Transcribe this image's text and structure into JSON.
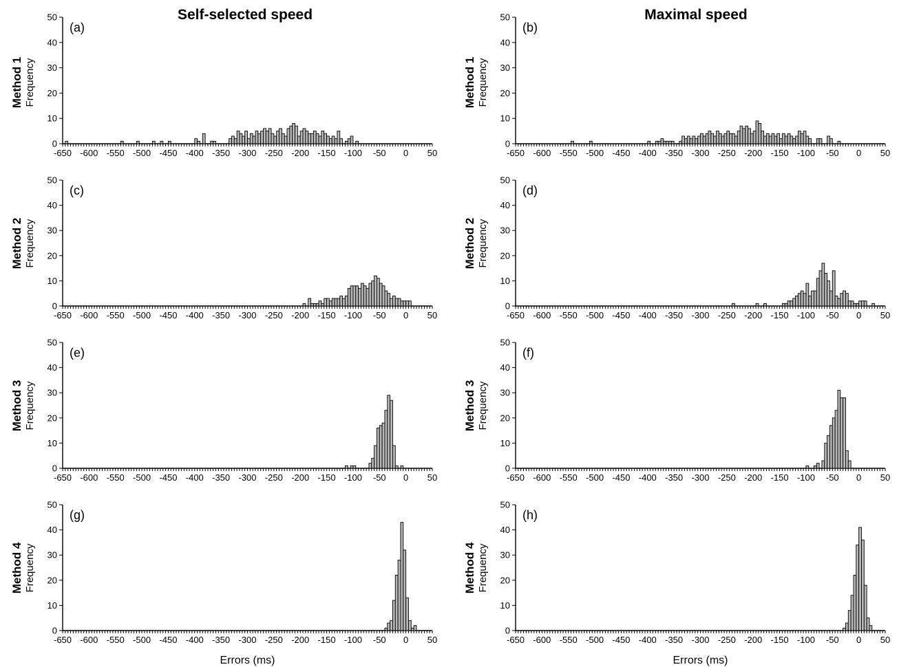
{
  "figure": {
    "columns": [
      {
        "title": "Self-selected speed"
      },
      {
        "title": "Maximal speed"
      }
    ],
    "rows": [
      {
        "method": "Method 1",
        "ylabel": "Frequency"
      },
      {
        "method": "Method 2",
        "ylabel": "Frequency"
      },
      {
        "method": "Method 3",
        "ylabel": "Frequency"
      },
      {
        "method": "Method 4",
        "ylabel": "Frequency"
      }
    ],
    "xlabel": "Errors (ms)",
    "bar_fill_color": "#b8b8b8"
  },
  "chart_data": [
    {
      "type": "bar",
      "label": "(a)",
      "column": "Self-selected speed",
      "row": "Method 1",
      "xlabel": "",
      "ylabel": "Frequency",
      "xlim": [
        -650,
        50
      ],
      "ylim": [
        0,
        50
      ],
      "xticks": [
        -650,
        -600,
        -550,
        -500,
        -450,
        -400,
        -350,
        -300,
        -250,
        -200,
        -150,
        -100,
        -50,
        0,
        50
      ],
      "yticks": [
        0,
        10,
        20,
        30,
        40,
        50
      ],
      "bin_width": 5,
      "bins": [
        [
          -645,
          1
        ],
        [
          -540,
          1
        ],
        [
          -510,
          1
        ],
        [
          -480,
          1
        ],
        [
          -465,
          1
        ],
        [
          -450,
          1
        ],
        [
          -400,
          2
        ],
        [
          -395,
          1
        ],
        [
          -385,
          4
        ],
        [
          -370,
          1
        ],
        [
          -365,
          1
        ],
        [
          -335,
          2
        ],
        [
          -330,
          3
        ],
        [
          -325,
          2
        ],
        [
          -320,
          5
        ],
        [
          -315,
          4
        ],
        [
          -310,
          3
        ],
        [
          -305,
          5
        ],
        [
          -300,
          2
        ],
        [
          -295,
          4
        ],
        [
          -290,
          3
        ],
        [
          -285,
          5
        ],
        [
          -280,
          4
        ],
        [
          -275,
          5
        ],
        [
          -270,
          6
        ],
        [
          -265,
          5
        ],
        [
          -260,
          6
        ],
        [
          -255,
          4
        ],
        [
          -250,
          3
        ],
        [
          -245,
          5
        ],
        [
          -240,
          6
        ],
        [
          -235,
          4
        ],
        [
          -230,
          3
        ],
        [
          -225,
          6
        ],
        [
          -220,
          7
        ],
        [
          -215,
          8
        ],
        [
          -210,
          7
        ],
        [
          -205,
          3
        ],
        [
          -200,
          5
        ],
        [
          -195,
          6
        ],
        [
          -190,
          5
        ],
        [
          -185,
          4
        ],
        [
          -180,
          4
        ],
        [
          -175,
          5
        ],
        [
          -170,
          4
        ],
        [
          -165,
          3
        ],
        [
          -160,
          5
        ],
        [
          -155,
          4
        ],
        [
          -150,
          3
        ],
        [
          -145,
          2
        ],
        [
          -140,
          3
        ],
        [
          -135,
          2
        ],
        [
          -130,
          5
        ],
        [
          -125,
          2
        ],
        [
          -115,
          1
        ],
        [
          -110,
          2
        ],
        [
          -105,
          3
        ],
        [
          -95,
          1
        ]
      ]
    },
    {
      "type": "bar",
      "label": "(b)",
      "column": "Maximal speed",
      "row": "Method 1",
      "xlabel": "",
      "ylabel": "Frequency",
      "xlim": [
        -650,
        50
      ],
      "ylim": [
        0,
        50
      ],
      "xticks": [
        -650,
        -600,
        -550,
        -500,
        -450,
        -400,
        -350,
        -300,
        -250,
        -200,
        -150,
        -100,
        -50,
        0,
        50
      ],
      "yticks": [
        0,
        10,
        20,
        30,
        40,
        50
      ],
      "bin_width": 5,
      "bins": [
        [
          -545,
          1
        ],
        [
          -510,
          1
        ],
        [
          -400,
          1
        ],
        [
          -385,
          1
        ],
        [
          -380,
          1
        ],
        [
          -375,
          2
        ],
        [
          -370,
          1
        ],
        [
          -365,
          1
        ],
        [
          -360,
          1
        ],
        [
          -355,
          1
        ],
        [
          -340,
          1
        ],
        [
          -335,
          3
        ],
        [
          -330,
          2
        ],
        [
          -325,
          3
        ],
        [
          -320,
          2
        ],
        [
          -315,
          3
        ],
        [
          -310,
          2
        ],
        [
          -305,
          3
        ],
        [
          -300,
          4
        ],
        [
          -295,
          3
        ],
        [
          -290,
          4
        ],
        [
          -285,
          5
        ],
        [
          -280,
          4
        ],
        [
          -275,
          3
        ],
        [
          -270,
          5
        ],
        [
          -265,
          4
        ],
        [
          -260,
          3
        ],
        [
          -255,
          4
        ],
        [
          -250,
          5
        ],
        [
          -245,
          4
        ],
        [
          -240,
          4
        ],
        [
          -235,
          3
        ],
        [
          -230,
          5
        ],
        [
          -225,
          7
        ],
        [
          -220,
          6
        ],
        [
          -215,
          7
        ],
        [
          -210,
          6
        ],
        [
          -205,
          4
        ],
        [
          -200,
          5
        ],
        [
          -195,
          9
        ],
        [
          -190,
          8
        ],
        [
          -185,
          5
        ],
        [
          -180,
          3
        ],
        [
          -175,
          4
        ],
        [
          -170,
          3
        ],
        [
          -165,
          4
        ],
        [
          -160,
          3
        ],
        [
          -155,
          4
        ],
        [
          -150,
          2
        ],
        [
          -145,
          4
        ],
        [
          -140,
          3
        ],
        [
          -135,
          4
        ],
        [
          -130,
          3
        ],
        [
          -125,
          2
        ],
        [
          -120,
          3
        ],
        [
          -115,
          5
        ],
        [
          -110,
          4
        ],
        [
          -105,
          5
        ],
        [
          -100,
          3
        ],
        [
          -95,
          2
        ],
        [
          -80,
          2
        ],
        [
          -75,
          2
        ],
        [
          -60,
          3
        ],
        [
          -55,
          2
        ],
        [
          -40,
          1
        ]
      ]
    },
    {
      "type": "bar",
      "label": "(c)",
      "column": "Self-selected speed",
      "row": "Method 2",
      "xlabel": "",
      "ylabel": "Frequency",
      "xlim": [
        -650,
        50
      ],
      "ylim": [
        0,
        50
      ],
      "xticks": [
        -650,
        -600,
        -550,
        -500,
        -450,
        -400,
        -350,
        -300,
        -250,
        -200,
        -150,
        -100,
        -50,
        0,
        50
      ],
      "yticks": [
        0,
        10,
        20,
        30,
        40,
        50
      ],
      "bin_width": 5,
      "bins": [
        [
          -195,
          1
        ],
        [
          -185,
          3
        ],
        [
          -180,
          1
        ],
        [
          -175,
          1
        ],
        [
          -170,
          1
        ],
        [
          -165,
          2
        ],
        [
          -160,
          1
        ],
        [
          -155,
          3
        ],
        [
          -150,
          3
        ],
        [
          -145,
          2
        ],
        [
          -140,
          3
        ],
        [
          -135,
          3
        ],
        [
          -130,
          3
        ],
        [
          -125,
          4
        ],
        [
          -120,
          3
        ],
        [
          -115,
          4
        ],
        [
          -110,
          7
        ],
        [
          -105,
          8
        ],
        [
          -100,
          8
        ],
        [
          -95,
          8
        ],
        [
          -90,
          7
        ],
        [
          -85,
          9
        ],
        [
          -80,
          8
        ],
        [
          -75,
          7
        ],
        [
          -70,
          9
        ],
        [
          -65,
          10
        ],
        [
          -60,
          12
        ],
        [
          -55,
          11
        ],
        [
          -50,
          9
        ],
        [
          -45,
          8
        ],
        [
          -40,
          6
        ],
        [
          -35,
          5
        ],
        [
          -30,
          3
        ],
        [
          -25,
          4
        ],
        [
          -20,
          3
        ],
        [
          -15,
          3
        ],
        [
          -10,
          2
        ],
        [
          -5,
          2
        ],
        [
          0,
          2
        ],
        [
          5,
          2
        ]
      ]
    },
    {
      "type": "bar",
      "label": "(d)",
      "column": "Maximal speed",
      "row": "Method 2",
      "xlabel": "",
      "ylabel": "Frequency",
      "xlim": [
        -650,
        50
      ],
      "ylim": [
        0,
        50
      ],
      "xticks": [
        -650,
        -600,
        -550,
        -500,
        -450,
        -400,
        -350,
        -300,
        -250,
        -200,
        -150,
        -100,
        -50,
        0,
        50
      ],
      "yticks": [
        0,
        10,
        20,
        30,
        40,
        50
      ],
      "bin_width": 5,
      "bins": [
        [
          -240,
          1
        ],
        [
          -195,
          1
        ],
        [
          -180,
          1
        ],
        [
          -145,
          1
        ],
        [
          -140,
          1
        ],
        [
          -135,
          2
        ],
        [
          -130,
          2
        ],
        [
          -125,
          3
        ],
        [
          -120,
          4
        ],
        [
          -115,
          5
        ],
        [
          -110,
          6
        ],
        [
          -105,
          5
        ],
        [
          -100,
          9
        ],
        [
          -95,
          4
        ],
        [
          -90,
          6
        ],
        [
          -85,
          6
        ],
        [
          -80,
          11
        ],
        [
          -75,
          14
        ],
        [
          -70,
          17
        ],
        [
          -65,
          13
        ],
        [
          -60,
          10
        ],
        [
          -55,
          6
        ],
        [
          -50,
          14
        ],
        [
          -45,
          4
        ],
        [
          -40,
          3
        ],
        [
          -35,
          5
        ],
        [
          -30,
          6
        ],
        [
          -25,
          5
        ],
        [
          -20,
          2
        ],
        [
          -15,
          2
        ],
        [
          -10,
          1
        ],
        [
          -5,
          1
        ],
        [
          0,
          2
        ],
        [
          5,
          2
        ],
        [
          10,
          2
        ],
        [
          25,
          1
        ]
      ]
    },
    {
      "type": "bar",
      "label": "(e)",
      "column": "Self-selected speed",
      "row": "Method 3",
      "xlabel": "",
      "ylabel": "Frequency",
      "xlim": [
        -650,
        50
      ],
      "ylim": [
        0,
        50
      ],
      "xticks": [
        -650,
        -600,
        -550,
        -500,
        -450,
        -400,
        -350,
        -300,
        -250,
        -200,
        -150,
        -100,
        -50,
        0,
        50
      ],
      "yticks": [
        0,
        10,
        20,
        30,
        40,
        50
      ],
      "bin_width": 5,
      "bins": [
        [
          -115,
          1
        ],
        [
          -105,
          1
        ],
        [
          -100,
          1
        ],
        [
          -70,
          2
        ],
        [
          -65,
          4
        ],
        [
          -60,
          9
        ],
        [
          -55,
          16
        ],
        [
          -50,
          17
        ],
        [
          -45,
          18
        ],
        [
          -40,
          23
        ],
        [
          -35,
          29
        ],
        [
          -30,
          27
        ],
        [
          -25,
          9
        ],
        [
          -20,
          1
        ],
        [
          -10,
          1
        ]
      ]
    },
    {
      "type": "bar",
      "label": "(f)",
      "column": "Maximal speed",
      "row": "Method 3",
      "xlabel": "",
      "ylabel": "Frequency",
      "xlim": [
        -650,
        50
      ],
      "ylim": [
        0,
        50
      ],
      "xticks": [
        -650,
        -600,
        -550,
        -500,
        -450,
        -400,
        -350,
        -300,
        -250,
        -200,
        -150,
        -100,
        -50,
        0,
        50
      ],
      "yticks": [
        0,
        10,
        20,
        30,
        40,
        50
      ],
      "bin_width": 5,
      "bins": [
        [
          -100,
          1
        ],
        [
          -85,
          1
        ],
        [
          -80,
          2
        ],
        [
          -70,
          3
        ],
        [
          -65,
          10
        ],
        [
          -60,
          13
        ],
        [
          -55,
          17
        ],
        [
          -50,
          20
        ],
        [
          -45,
          23
        ],
        [
          -40,
          31
        ],
        [
          -35,
          28
        ],
        [
          -30,
          28
        ],
        [
          -25,
          7
        ],
        [
          -20,
          3
        ]
      ]
    },
    {
      "type": "bar",
      "label": "(g)",
      "column": "Self-selected speed",
      "row": "Method 4",
      "xlabel": "Errors (ms)",
      "ylabel": "Frequency",
      "xlim": [
        -650,
        50
      ],
      "ylim": [
        0,
        50
      ],
      "xticks": [
        -650,
        -600,
        -550,
        -500,
        -450,
        -400,
        -350,
        -300,
        -250,
        -200,
        -150,
        -100,
        -50,
        0,
        50
      ],
      "yticks": [
        0,
        10,
        20,
        30,
        40,
        50
      ],
      "bin_width": 5,
      "bins": [
        [
          -40,
          1
        ],
        [
          -35,
          3
        ],
        [
          -30,
          4
        ],
        [
          -25,
          12
        ],
        [
          -20,
          22
        ],
        [
          -15,
          28
        ],
        [
          -10,
          43
        ],
        [
          -5,
          32
        ],
        [
          0,
          13
        ],
        [
          5,
          4
        ],
        [
          10,
          1
        ],
        [
          15,
          2
        ]
      ]
    },
    {
      "type": "bar",
      "label": "(h)",
      "column": "Maximal speed",
      "row": "Method 4",
      "xlabel": "Errors (ms)",
      "ylabel": "Frequency",
      "xlim": [
        -650,
        50
      ],
      "ylim": [
        0,
        50
      ],
      "xticks": [
        -650,
        -600,
        -550,
        -500,
        -450,
        -400,
        -350,
        -300,
        -250,
        -200,
        -150,
        -100,
        -50,
        0,
        50
      ],
      "yticks": [
        0,
        10,
        20,
        30,
        40,
        50
      ],
      "bin_width": 5,
      "bins": [
        [
          -30,
          1
        ],
        [
          -25,
          3
        ],
        [
          -20,
          8
        ],
        [
          -15,
          14
        ],
        [
          -10,
          22
        ],
        [
          -5,
          34
        ],
        [
          0,
          41
        ],
        [
          5,
          36
        ],
        [
          10,
          18
        ],
        [
          15,
          5
        ],
        [
          20,
          2
        ]
      ]
    }
  ]
}
